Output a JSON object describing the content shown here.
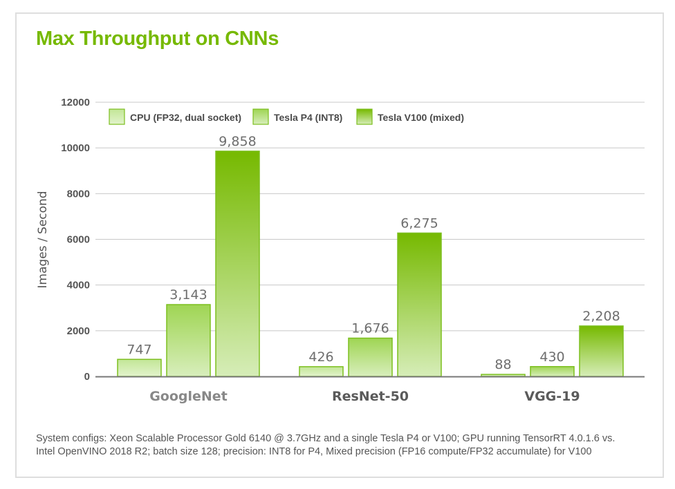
{
  "title": "Max Throughput on CNNs",
  "footnote": {
    "line1": "System configs: Xeon Scalable Processor Gold 6140 @ 3.7GHz and a single Tesla P4 or V100; GPU running TensorRT 4.0.1.6 vs.",
    "line2": "Intel OpenVINO 2018 R2; batch size 128; precision: INT8 for P4, Mixed precision (FP16 compute/FP32 accumulate) for V100"
  },
  "colors": {
    "brand": "#76b900",
    "grid": "#c8c8c8",
    "axis": "#777777",
    "bar_stroke": "#7cbf1e"
  },
  "chart_data": {
    "type": "bar",
    "title": "Max Throughput on CNNs",
    "xlabel": "",
    "ylabel": "Images / Second",
    "ylim": [
      0,
      12000
    ],
    "yticks": [
      0,
      2000,
      4000,
      6000,
      8000,
      10000,
      12000
    ],
    "ytick_labels": [
      "0",
      "2000",
      "4000",
      "6000",
      "8000",
      "10000",
      "12000"
    ],
    "grid": true,
    "legend_position": "top-left",
    "categories": [
      "GoogleNet",
      "ResNet-50",
      "VGG-19"
    ],
    "category_colors": [
      "#888888",
      "#5a5a5a",
      "#5a5a5a"
    ],
    "series": [
      {
        "name": "CPU (FP32, dual socket)",
        "values": [
          747,
          426,
          88
        ],
        "labels": [
          "747",
          "426",
          "88"
        ],
        "gradient": [
          "#c2e696",
          "#e2f3cc"
        ]
      },
      {
        "name": "Tesla P4 (INT8)",
        "values": [
          3143,
          1676,
          430
        ],
        "labels": [
          "3,143",
          "1,676",
          "430"
        ],
        "gradient": [
          "#9fd553",
          "#d8eebc"
        ]
      },
      {
        "name": "Tesla V100 (mixed)",
        "values": [
          9858,
          6275,
          2208
        ],
        "labels": [
          "9,858",
          "6,275",
          "2,208"
        ],
        "gradient": [
          "#76b900",
          "#d6edb8"
        ]
      }
    ]
  }
}
